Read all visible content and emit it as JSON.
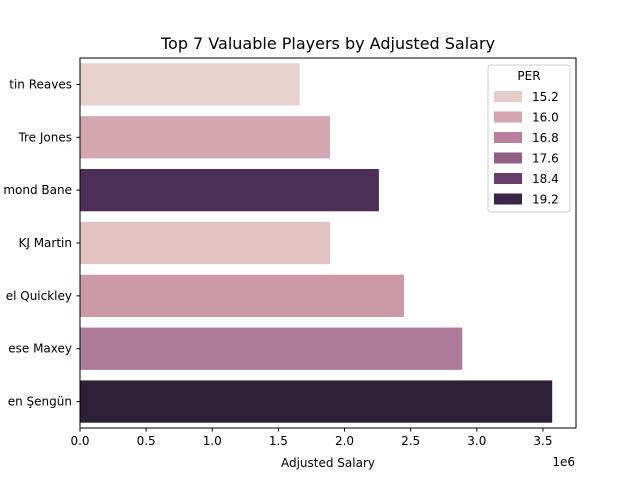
{
  "chart_data": {
    "type": "bar",
    "orientation": "horizontal",
    "title": "Top 7 Valuable Players by Adjusted Salary",
    "xlabel": "Adjusted Salary",
    "ylabel": "",
    "offset_text": "1e6",
    "xlim": [
      0,
      3.75
    ],
    "xscale_multiplier": 1000000,
    "xticks": [
      0,
      0.5,
      1,
      1.5,
      2,
      2.5,
      3,
      3.5
    ],
    "xtick_labels": [
      "0.0",
      "0.5",
      "1.0",
      "1.5",
      "2.0",
      "2.5",
      "3.0",
      "3.5"
    ],
    "categories": [
      "tin Reaves",
      "Tre Jones",
      "mond Bane",
      "KJ Martin",
      "el Quickley",
      "ese Maxey",
      "en Şengün"
    ],
    "values": [
      1.66,
      1.89,
      2.26,
      1.89,
      2.45,
      2.89,
      3.57
    ],
    "per": [
      15.0,
      15.9,
      19.0,
      15.2,
      16.2,
      16.7,
      19.6
    ],
    "bar_colors": [
      "#e8d2d0",
      "#d4a6b0",
      "#4d2e57",
      "#e3c2c3",
      "#cb99a8",
      "#ad7b96",
      "#2e2037"
    ],
    "legend": {
      "title": "PER",
      "position": "top-right",
      "entries": [
        {
          "label": "15.2",
          "color": "#e5ccc9"
        },
        {
          "label": "16.0",
          "color": "#d4a5af"
        },
        {
          "label": "16.8",
          "color": "#b87f9e"
        },
        {
          "label": "17.6",
          "color": "#925f85"
        },
        {
          "label": "18.4",
          "color": "#683f6b"
        },
        {
          "label": "19.2",
          "color": "#3b2648"
        }
      ]
    },
    "grid": false
  }
}
